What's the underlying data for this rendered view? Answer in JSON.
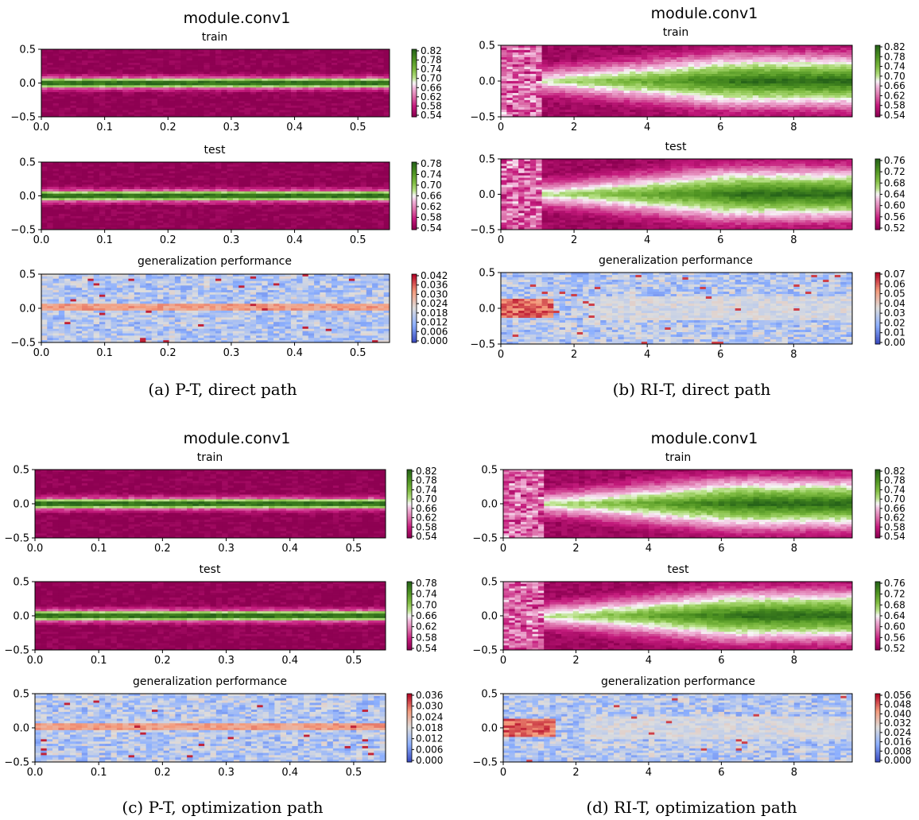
{
  "panels": [
    {
      "id": "a",
      "title": "module.conv1",
      "caption": "(a) P-T, direct path",
      "chart_data": [
        {
          "type": "heatmap",
          "title": "train",
          "pattern": "pt",
          "ylim": [
            -0.5,
            0.5
          ],
          "xlim": [
            0,
            0.55
          ],
          "xticks": [
            "0.0",
            "0.1",
            "0.2",
            "0.3",
            "0.4",
            "0.5"
          ],
          "yticks": [
            "0.5",
            "0.0",
            "−0.5"
          ],
          "cmap": "PiYG",
          "colorbar": [
            "0.82",
            "0.78",
            "0.74",
            "0.70",
            "0.66",
            "0.62",
            "0.58",
            "0.54"
          ]
        },
        {
          "type": "heatmap",
          "title": "test",
          "pattern": "pt",
          "ylim": [
            -0.5,
            0.5
          ],
          "xlim": [
            0,
            0.55
          ],
          "xticks": [
            "0.0",
            "0.1",
            "0.2",
            "0.3",
            "0.4",
            "0.5"
          ],
          "yticks": [
            "0.5",
            "0.0",
            "−0.5"
          ],
          "cmap": "PiYG",
          "colorbar": [
            "0.78",
            "0.74",
            "0.70",
            "0.66",
            "0.62",
            "0.58",
            "0.54"
          ]
        },
        {
          "type": "heatmap",
          "title": "generalization performance",
          "pattern": "ptgen",
          "ylim": [
            -0.5,
            0.5
          ],
          "xlim": [
            0,
            0.55
          ],
          "xticks": [
            "0.0",
            "0.1",
            "0.2",
            "0.3",
            "0.4",
            "0.5"
          ],
          "yticks": [
            "0.5",
            "0.0",
            "−0.5"
          ],
          "cmap": "coolwarm",
          "colorbar": [
            "0.042",
            "0.036",
            "0.030",
            "0.024",
            "0.018",
            "0.012",
            "0.006",
            "0.000"
          ]
        }
      ]
    },
    {
      "id": "b",
      "title": "module.conv1",
      "caption": "(b) RI-T, direct path",
      "chart_data": [
        {
          "type": "heatmap",
          "title": "train",
          "pattern": "ri",
          "ylim": [
            -0.5,
            0.5
          ],
          "xlim": [
            0,
            9.6
          ],
          "xticks": [
            "0",
            "2",
            "4",
            "6",
            "8"
          ],
          "yticks": [
            "0.5",
            "0.0",
            "−0.5"
          ],
          "cmap": "PiYG",
          "colorbar": [
            "0.82",
            "0.78",
            "0.74",
            "0.70",
            "0.66",
            "0.62",
            "0.58",
            "0.54"
          ]
        },
        {
          "type": "heatmap",
          "title": "test",
          "pattern": "ri",
          "ylim": [
            -0.5,
            0.5
          ],
          "xlim": [
            0,
            9.6
          ],
          "xticks": [
            "0",
            "2",
            "4",
            "6",
            "8"
          ],
          "yticks": [
            "0.5",
            "0.0",
            "−0.5"
          ],
          "cmap": "PiYG",
          "colorbar": [
            "0.76",
            "0.72",
            "0.68",
            "0.64",
            "0.60",
            "0.56",
            "0.52"
          ]
        },
        {
          "type": "heatmap",
          "title": "generalization performance",
          "pattern": "rigen",
          "ylim": [
            -0.5,
            0.5
          ],
          "xlim": [
            0,
            9.6
          ],
          "xticks": [
            "0",
            "2",
            "4",
            "6",
            "8"
          ],
          "yticks": [
            "0.5",
            "0.0",
            "−0.5"
          ],
          "cmap": "coolwarm",
          "colorbar": [
            "0.07",
            "0.06",
            "0.05",
            "0.04",
            "0.03",
            "0.02",
            "0.01",
            "0.00"
          ]
        }
      ]
    },
    {
      "id": "c",
      "title": "module.conv1",
      "caption": "(c) P-T, optimization path",
      "chart_data": [
        {
          "type": "heatmap",
          "title": "train",
          "pattern": "pt",
          "ylim": [
            -0.5,
            0.5
          ],
          "xlim": [
            0,
            0.55
          ],
          "xticks": [
            "0.0",
            "0.1",
            "0.2",
            "0.3",
            "0.4",
            "0.5"
          ],
          "yticks": [
            "0.5",
            "0.0",
            "−0.5"
          ],
          "cmap": "PiYG",
          "colorbar": [
            "0.82",
            "0.78",
            "0.74",
            "0.70",
            "0.66",
            "0.62",
            "0.58",
            "0.54"
          ]
        },
        {
          "type": "heatmap",
          "title": "test",
          "pattern": "pt",
          "ylim": [
            -0.5,
            0.5
          ],
          "xlim": [
            0,
            0.55
          ],
          "xticks": [
            "0.0",
            "0.1",
            "0.2",
            "0.3",
            "0.4",
            "0.5"
          ],
          "yticks": [
            "0.5",
            "0.0",
            "−0.5"
          ],
          "cmap": "PiYG",
          "colorbar": [
            "0.78",
            "0.74",
            "0.70",
            "0.66",
            "0.62",
            "0.58",
            "0.54"
          ]
        },
        {
          "type": "heatmap",
          "title": "generalization performance",
          "pattern": "ptgen",
          "ylim": [
            -0.5,
            0.5
          ],
          "xlim": [
            0,
            0.55
          ],
          "xticks": [
            "0.0",
            "0.1",
            "0.2",
            "0.3",
            "0.4",
            "0.5"
          ],
          "yticks": [
            "0.5",
            "0.0",
            "−0.5"
          ],
          "cmap": "coolwarm",
          "colorbar": [
            "0.036",
            "0.030",
            "0.024",
            "0.018",
            "0.012",
            "0.006",
            "0.000"
          ]
        }
      ]
    },
    {
      "id": "d",
      "title": "module.conv1",
      "caption": "(d) RI-T, optimization path",
      "chart_data": [
        {
          "type": "heatmap",
          "title": "train",
          "pattern": "ri",
          "ylim": [
            -0.5,
            0.5
          ],
          "xlim": [
            0,
            9.6
          ],
          "xticks": [
            "0",
            "2",
            "4",
            "6",
            "8"
          ],
          "yticks": [
            "0.5",
            "0.0",
            "−0.5"
          ],
          "cmap": "PiYG",
          "colorbar": [
            "0.82",
            "0.78",
            "0.74",
            "0.70",
            "0.66",
            "0.62",
            "0.58",
            "0.54"
          ]
        },
        {
          "type": "heatmap",
          "title": "test",
          "pattern": "ri",
          "ylim": [
            -0.5,
            0.5
          ],
          "xlim": [
            0,
            9.6
          ],
          "xticks": [
            "0",
            "2",
            "4",
            "6",
            "8"
          ],
          "yticks": [
            "0.5",
            "0.0",
            "−0.5"
          ],
          "cmap": "PiYG",
          "colorbar": [
            "0.76",
            "0.72",
            "0.68",
            "0.64",
            "0.60",
            "0.56",
            "0.52"
          ]
        },
        {
          "type": "heatmap",
          "title": "generalization performance",
          "pattern": "rigen",
          "ylim": [
            -0.5,
            0.5
          ],
          "xlim": [
            0,
            9.6
          ],
          "xticks": [
            "0",
            "2",
            "4",
            "6",
            "8"
          ],
          "yticks": [
            "0.5",
            "0.0",
            "−0.5"
          ],
          "cmap": "coolwarm",
          "colorbar": [
            "0.056",
            "0.048",
            "0.040",
            "0.032",
            "0.024",
            "0.016",
            "0.008",
            "0.000"
          ]
        }
      ]
    }
  ]
}
